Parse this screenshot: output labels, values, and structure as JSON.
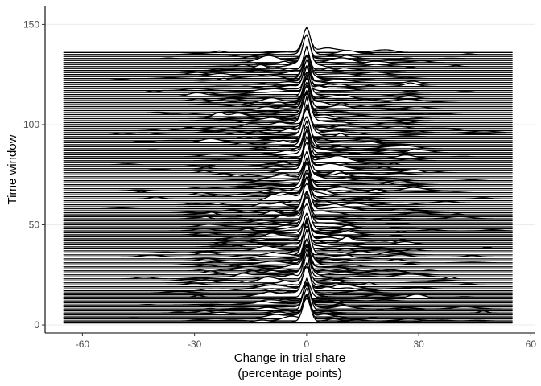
{
  "chart_data": {
    "type": "ridgeline",
    "xlabel_line1": "Change in trial share",
    "xlabel_line2": "(percentage points)",
    "ylabel": "Time window",
    "xlim": [
      -70,
      61
    ],
    "ylim": [
      -4,
      159
    ],
    "x_ticks": [
      -60,
      -30,
      0,
      30,
      60
    ],
    "x_tick_labels": [
      "-60",
      "-30",
      "0",
      "30",
      "60"
    ],
    "y_ticks": [
      0,
      50,
      100,
      150
    ],
    "y_tick_labels": [
      "0",
      "50",
      "100",
      "150"
    ],
    "ridge_count": 136,
    "ridge_x_range": [
      -65,
      55
    ],
    "ridge_peak_x": 0,
    "peak_height_units": [
      7,
      14
    ],
    "grid": "horizontal major lines",
    "line_color": "#000000",
    "fill_color": "#ffffff",
    "grid_color": "#ebebeb"
  }
}
